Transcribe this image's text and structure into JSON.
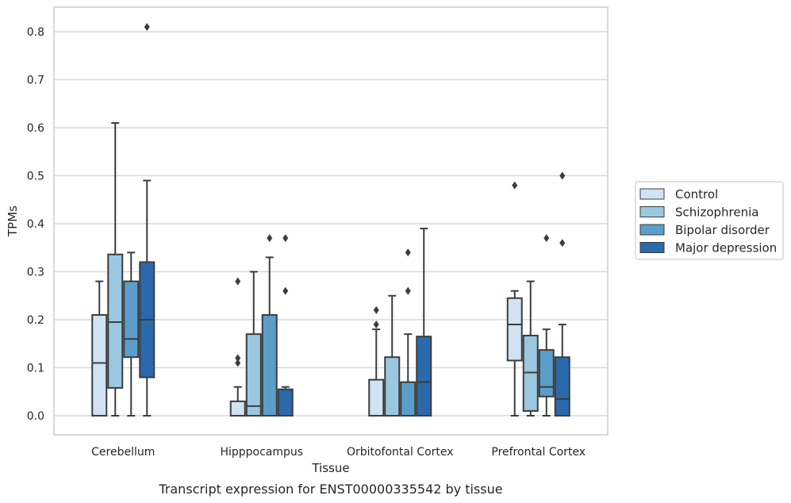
{
  "chart_data": {
    "type": "box",
    "title": "",
    "caption": "Transcript expression for ENST00000335542 by tissue",
    "xlabel": "Tissue",
    "ylabel": "TPMs",
    "ylim": [
      -0.04,
      0.86
    ],
    "yticks": [
      0.0,
      0.1,
      0.2,
      0.3,
      0.4,
      0.5,
      0.6,
      0.7,
      0.8
    ],
    "ytick_labels": [
      "0.0",
      "0.1",
      "0.2",
      "0.3",
      "0.4",
      "0.5",
      "0.6",
      "0.7",
      "0.8"
    ],
    "grid": "horizontal",
    "legend_position": "right",
    "categories": [
      "Cerebellum",
      "Hipppocampus",
      "Orbitofontal Cortex",
      "Prefrontal Cortex"
    ],
    "series": [
      {
        "name": "Control",
        "color": "#d1e2f2",
        "boxes": [
          {
            "min": 0.0,
            "q1": 0.0,
            "median": 0.11,
            "q3": 0.21,
            "max": 0.28,
            "outliers": []
          },
          {
            "min": 0.0,
            "q1": 0.0,
            "median": 0.0,
            "q3": 0.03,
            "max": 0.06,
            "outliers": [
              0.28,
              0.12,
              0.11
            ]
          },
          {
            "min": 0.0,
            "q1": 0.0,
            "median": 0.0,
            "q3": 0.075,
            "max": 0.18,
            "outliers": [
              0.22,
              0.19
            ]
          },
          {
            "min": 0.0,
            "q1": 0.115,
            "median": 0.19,
            "q3": 0.245,
            "max": 0.26,
            "outliers": [
              0.48
            ]
          }
        ]
      },
      {
        "name": "Schizophrenia",
        "color": "#9ac8e0",
        "boxes": [
          {
            "min": 0.0,
            "q1": 0.058,
            "median": 0.195,
            "q3": 0.336,
            "max": 0.61,
            "outliers": []
          },
          {
            "min": 0.0,
            "q1": 0.0,
            "median": 0.02,
            "q3": 0.17,
            "max": 0.3,
            "outliers": []
          },
          {
            "min": 0.0,
            "q1": 0.0,
            "median": 0.0,
            "q3": 0.122,
            "max": 0.25,
            "outliers": []
          },
          {
            "min": 0.0,
            "q1": 0.01,
            "median": 0.09,
            "q3": 0.167,
            "max": 0.28,
            "outliers": []
          }
        ]
      },
      {
        "name": "Bipolar disorder",
        "color": "#5a9ec9",
        "boxes": [
          {
            "min": 0.0,
            "q1": 0.122,
            "median": 0.16,
            "q3": 0.28,
            "max": 0.34,
            "outliers": []
          },
          {
            "min": 0.0,
            "q1": 0.0,
            "median": 0.0,
            "q3": 0.21,
            "max": 0.33,
            "outliers": [
              0.37
            ]
          },
          {
            "min": 0.0,
            "q1": 0.0,
            "median": 0.0,
            "q3": 0.07,
            "max": 0.17,
            "outliers": [
              0.34,
              0.26
            ]
          },
          {
            "min": 0.0,
            "q1": 0.04,
            "median": 0.06,
            "q3": 0.137,
            "max": 0.18,
            "outliers": [
              0.37
            ]
          }
        ]
      },
      {
        "name": "Major depression",
        "color": "#2a69ab",
        "boxes": [
          {
            "min": 0.0,
            "q1": 0.08,
            "median": 0.2,
            "q3": 0.32,
            "max": 0.49,
            "outliers": [
              0.81
            ]
          },
          {
            "min": 0.0,
            "q1": 0.0,
            "median": 0.0,
            "q3": 0.055,
            "max": 0.06,
            "outliers": [
              0.37,
              0.26
            ]
          },
          {
            "min": 0.0,
            "q1": 0.0,
            "median": 0.07,
            "q3": 0.165,
            "max": 0.39,
            "outliers": []
          },
          {
            "min": 0.0,
            "q1": 0.0,
            "median": 0.035,
            "q3": 0.122,
            "max": 0.19,
            "outliers": [
              0.5,
              0.36
            ]
          }
        ]
      }
    ]
  }
}
